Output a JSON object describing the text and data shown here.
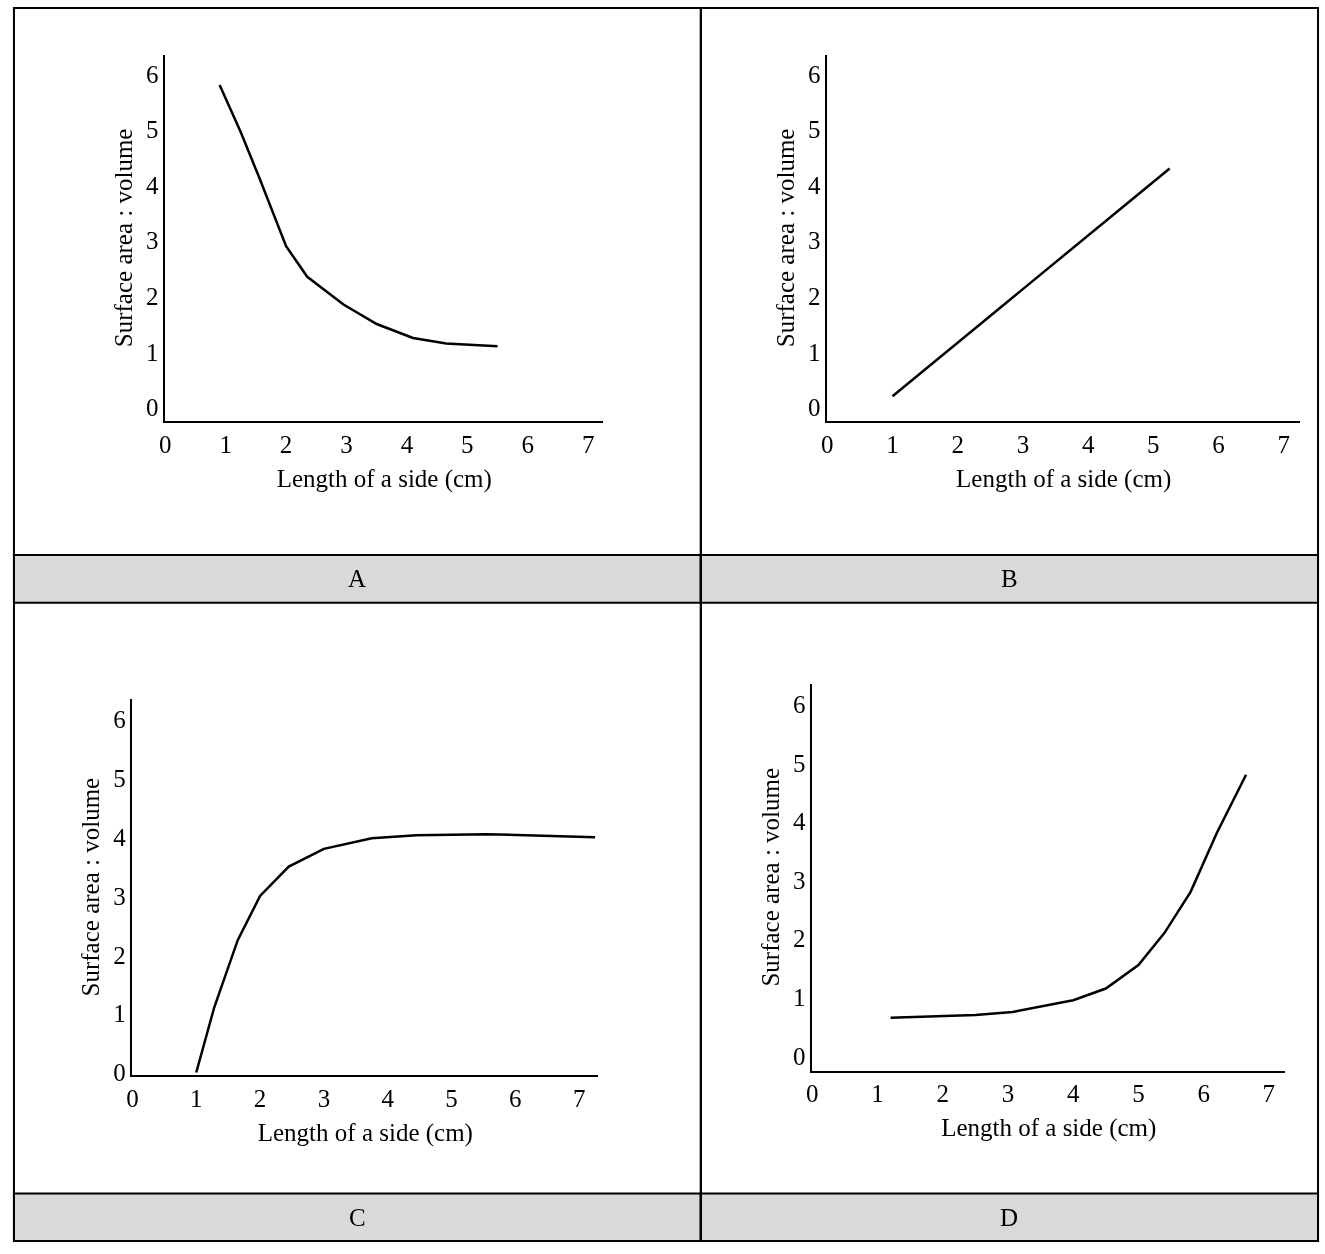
{
  "chart_data": [
    {
      "type": "line",
      "title": "A",
      "xlabel": "Length of a side (cm)",
      "ylabel": "Surface area : volume",
      "color": "#000000",
      "x": [
        0.9,
        1.25,
        1.55,
        2.0,
        2.35,
        2.95,
        3.5,
        4.1,
        4.65,
        5.5
      ],
      "values": [
        5.8,
        4.95,
        4.15,
        2.9,
        2.35,
        1.85,
        1.5,
        1.25,
        1.15,
        1.1
      ],
      "xlim": [
        0,
        7.25
      ],
      "xticks": [
        0,
        1,
        2,
        3,
        4,
        5,
        6,
        7
      ],
      "ylim": [
        -0.25,
        6.35
      ],
      "yticks": [
        0,
        1,
        2,
        3,
        4,
        5,
        6
      ]
    },
    {
      "type": "line",
      "title": "B",
      "xlabel": "Length of a side (cm)",
      "ylabel": "Surface area : volume",
      "color": "#000000",
      "x": [
        1.0,
        5.25
      ],
      "values": [
        0.2,
        4.3
      ],
      "xlim": [
        0,
        7.25
      ],
      "xticks": [
        0,
        1,
        2,
        3,
        4,
        5,
        6,
        7
      ],
      "ylim": [
        -0.25,
        6.35
      ],
      "yticks": [
        0,
        1,
        2,
        3,
        4,
        5,
        6
      ]
    },
    {
      "type": "line",
      "title": "C",
      "xlabel": "Length of a side (cm)",
      "ylabel": "Surface area : volume",
      "color": "#000000",
      "x": [
        1.0,
        1.28,
        1.65,
        2.0,
        2.45,
        3.0,
        3.75,
        4.45,
        5.55,
        7.25
      ],
      "values": [
        0.0,
        1.1,
        2.25,
        3.0,
        3.5,
        3.8,
        3.98,
        4.03,
        4.05,
        4.0
      ],
      "xlim": [
        0,
        7.3
      ],
      "xticks": [
        0,
        1,
        2,
        3,
        4,
        5,
        6,
        7
      ],
      "ylim": [
        -0.05,
        6.35
      ],
      "yticks": [
        0,
        1,
        2,
        3,
        4,
        5,
        6
      ]
    },
    {
      "type": "line",
      "title": "D",
      "xlabel": "Length of a side (cm)",
      "ylabel": "Surface area : volume",
      "color": "#000000",
      "x": [
        1.2,
        2.5,
        3.07,
        4.0,
        4.5,
        5.0,
        5.4,
        5.8,
        6.2,
        6.65
      ],
      "values": [
        0.65,
        0.7,
        0.75,
        0.95,
        1.15,
        1.55,
        2.1,
        2.8,
        3.8,
        4.8
      ],
      "xlim": [
        0,
        7.25
      ],
      "xticks": [
        0,
        1,
        2,
        3,
        4,
        5,
        6,
        7
      ],
      "ylim": [
        -0.25,
        6.35
      ],
      "yticks": [
        0,
        1,
        2,
        3,
        4,
        5,
        6
      ]
    }
  ]
}
